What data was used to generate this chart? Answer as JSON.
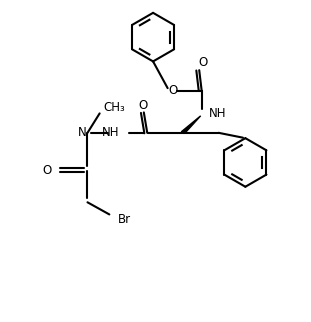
{
  "figsize": [
    3.11,
    3.22
  ],
  "dpi": 100,
  "bg": "#ffffff",
  "lw": 1.5,
  "fs": 8.5,
  "xlim": [
    -0.2,
    5.8
  ],
  "ylim": [
    0.2,
    6.8
  ]
}
